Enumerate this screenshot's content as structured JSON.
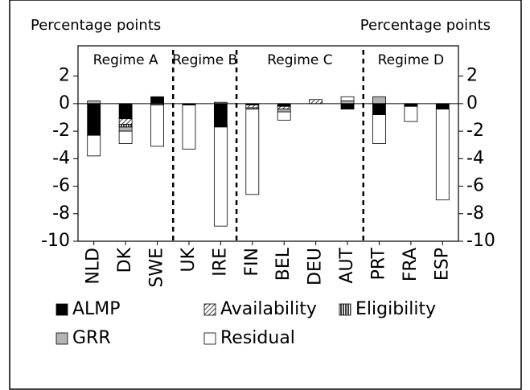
{
  "chart_data": {
    "type": "stacked_bar",
    "y_label": "Percentage points",
    "y2_label": "Percentage points",
    "categories": [
      "NLD",
      "DK",
      "SWE",
      "UK",
      "IRE",
      "FIN",
      "BEL",
      "DEU",
      "AUT",
      "PRT",
      "FRA",
      "ESP"
    ],
    "series": [
      {
        "name": "ALMP",
        "color": "#000000",
        "values": [
          -2.3,
          -1.1,
          0.5,
          -0.1,
          -1.7,
          -0.1,
          -0.2,
          0,
          -0.4,
          -0.8,
          -0.2,
          -0.4
        ]
      },
      {
        "name": "Availability",
        "color": "diagonal-hatch",
        "values": [
          0,
          -0.4,
          0,
          0,
          0,
          -0.2,
          -0.2,
          0.3,
          0,
          0,
          0,
          0
        ]
      },
      {
        "name": "Eligibility",
        "color": "vertical-hatch",
        "values": [
          0,
          -0.2,
          0,
          0,
          0,
          0,
          0,
          0,
          0,
          0,
          0,
          0
        ]
      },
      {
        "name": "GRR",
        "color": "#b3b3b3",
        "values": [
          0.2,
          -0.3,
          -0.1,
          0,
          0.1,
          -0.1,
          -0.2,
          0,
          0.2,
          0.5,
          0,
          0
        ]
      },
      {
        "name": "Residual",
        "color": "#ffffff",
        "values": [
          -1.5,
          -0.9,
          -3.0,
          -3.2,
          -7.2,
          -6.2,
          -0.6,
          0,
          0.3,
          -2.1,
          -1.1,
          -6.6
        ]
      }
    ],
    "regimes": [
      {
        "name": "Regime A",
        "start": 0,
        "end": 2
      },
      {
        "name": "Regime B",
        "start": 3,
        "end": 4
      },
      {
        "name": "Regime C",
        "start": 5,
        "end": 8
      },
      {
        "name": "Regime D",
        "start": 9,
        "end": 11
      }
    ],
    "ylim": [
      -10,
      4.2
    ],
    "yticks": [
      -10,
      -8,
      -6,
      -4,
      -2,
      0,
      2
    ],
    "y2lim": [
      -10,
      4.2
    ],
    "y2ticks": [
      -10,
      -8,
      -6,
      -4,
      -2,
      0,
      2
    ]
  }
}
